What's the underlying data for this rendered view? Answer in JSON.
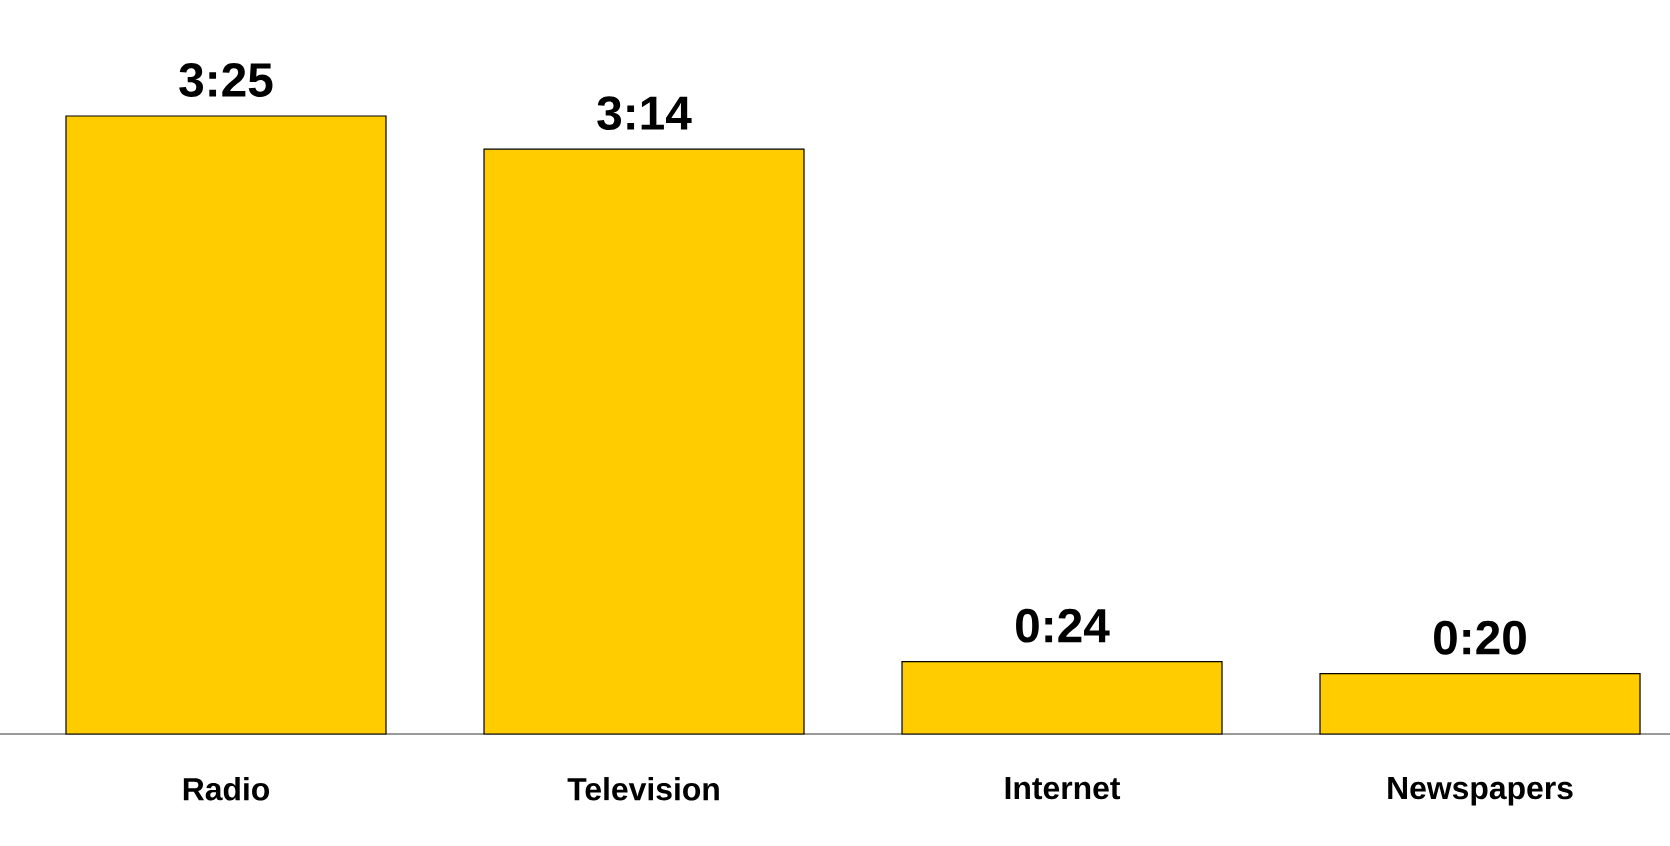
{
  "chart_data": {
    "type": "bar",
    "categories": [
      "Radio",
      "Television",
      "Internet",
      "Newspapers"
    ],
    "values": [
      205,
      194,
      24,
      20
    ],
    "value_labels": [
      "3:25",
      "3:14",
      "0:24",
      "0:20"
    ],
    "color": "#ffcc00"
  }
}
